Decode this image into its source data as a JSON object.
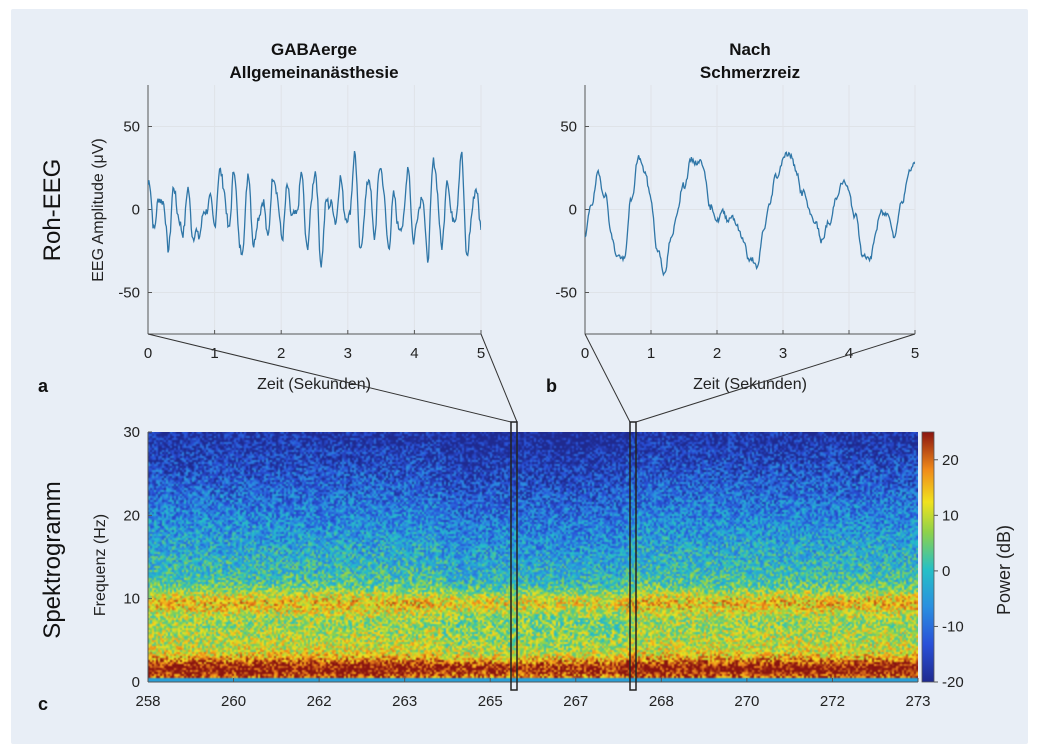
{
  "figure": {
    "row_labels": {
      "raw": "Roh-EEG",
      "spectrogram": "Spektrogramm"
    },
    "panel_letters": [
      "a",
      "b",
      "c"
    ],
    "colors": {
      "trace": "#2f76a7",
      "grid": "#dfe3e8",
      "background": "#e8eef6",
      "box": "#222222"
    }
  },
  "chart_data": [
    {
      "type": "line",
      "panel": "a",
      "title": [
        "GABAerge",
        "Allgemeinanästhesie"
      ],
      "xlabel": "Zeit (Sekunden)",
      "ylabel": "EEG Amplitude (μV)",
      "xlim": [
        0,
        5
      ],
      "ylim": [
        -75,
        75
      ],
      "xticks": [
        0,
        1,
        2,
        3,
        4,
        5
      ],
      "yticks": [
        -50,
        0,
        50
      ],
      "grid": true,
      "x": [
        0,
        0.1,
        0.2,
        0.3,
        0.4,
        0.5,
        0.6,
        0.7,
        0.8,
        0.9,
        1.0,
        1.1,
        1.2,
        1.3,
        1.4,
        1.5,
        1.6,
        1.7,
        1.8,
        1.9,
        2.0,
        2.1,
        2.2,
        2.3,
        2.4,
        2.5,
        2.6,
        2.7,
        2.8,
        2.9,
        3.0,
        3.1,
        3.2,
        3.3,
        3.4,
        3.5,
        3.6,
        3.7,
        3.8,
        3.9,
        4.0,
        4.1,
        4.2,
        4.3,
        4.4,
        4.5,
        4.6,
        4.7,
        4.8,
        4.9,
        5.0
      ],
      "y": [
        15,
        -8,
        10,
        -20,
        12,
        -15,
        8,
        -18,
        -10,
        5,
        -5,
        25,
        -10,
        20,
        -30,
        18,
        -20,
        5,
        -12,
        22,
        -15,
        10,
        -8,
        18,
        -22,
        25,
        -28,
        8,
        -5,
        15,
        -10,
        30,
        -25,
        20,
        -12,
        28,
        -20,
        5,
        -15,
        22,
        -18,
        10,
        -25,
        32,
        -20,
        15,
        -10,
        30,
        -28,
        12,
        -5
      ]
    },
    {
      "type": "line",
      "panel": "b",
      "title": [
        "Nach",
        "Schmerzreiz"
      ],
      "xlabel": "Zeit (Sekunden)",
      "ylabel": "",
      "xlim": [
        0,
        5
      ],
      "ylim": [
        -75,
        75
      ],
      "xticks": [
        0,
        1,
        2,
        3,
        4,
        5
      ],
      "yticks": [
        -50,
        0,
        50
      ],
      "grid": true,
      "x": [
        0,
        0.1,
        0.2,
        0.3,
        0.4,
        0.5,
        0.6,
        0.7,
        0.8,
        0.9,
        1.0,
        1.1,
        1.2,
        1.3,
        1.4,
        1.5,
        1.6,
        1.7,
        1.8,
        1.9,
        2.0,
        2.1,
        2.2,
        2.3,
        2.4,
        2.5,
        2.6,
        2.7,
        2.8,
        2.9,
        3.0,
        3.1,
        3.2,
        3.3,
        3.4,
        3.5,
        3.6,
        3.7,
        3.8,
        3.9,
        4.0,
        4.1,
        4.2,
        4.3,
        4.4,
        4.5,
        4.6,
        4.7,
        4.8,
        4.9,
        5.0
      ],
      "y": [
        -18,
        5,
        20,
        10,
        -15,
        -30,
        -28,
        5,
        30,
        25,
        5,
        -25,
        -38,
        -20,
        0,
        15,
        28,
        30,
        25,
        0,
        -5,
        -3,
        -5,
        -8,
        -20,
        -30,
        -35,
        -15,
        5,
        20,
        30,
        35,
        22,
        10,
        0,
        -10,
        -18,
        -8,
        5,
        18,
        10,
        -5,
        -25,
        -32,
        -15,
        0,
        -5,
        -15,
        5,
        20,
        30
      ]
    },
    {
      "type": "heatmap",
      "panel": "c",
      "xlabel": "",
      "ylabel": "Frequenz (Hz)",
      "xticks": [
        258,
        260,
        262,
        263,
        265,
        267,
        268,
        270,
        272,
        273
      ],
      "yticks": [
        0,
        10,
        20,
        30
      ],
      "ylim": [
        0,
        30
      ],
      "colorbar": {
        "label": "Power (dB)",
        "ticks": [
          -20,
          -10,
          0,
          10,
          20
        ],
        "range": [
          -20,
          25
        ]
      },
      "highlight_windows": [
        265.4,
        267.6
      ]
    }
  ]
}
